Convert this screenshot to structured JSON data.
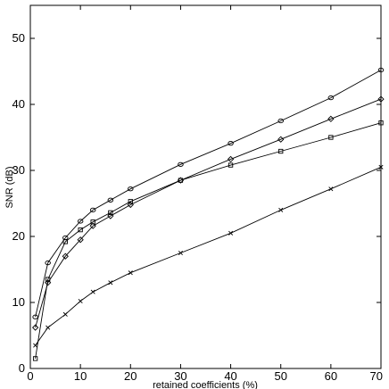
{
  "chart_data": {
    "type": "line",
    "title": "",
    "xlabel": "retained coefficients (%)",
    "ylabel": "SNR (dB)",
    "xlim": [
      0,
      70
    ],
    "ylim": [
      0,
      55
    ],
    "xticks": [
      0,
      10,
      20,
      30,
      40,
      50,
      60,
      70
    ],
    "yticks": [
      0,
      10,
      20,
      30,
      40,
      50
    ],
    "grid": false,
    "legend": "none",
    "series": [
      {
        "marker": "circle",
        "x": [
          1,
          3.5,
          7,
          10,
          12.5,
          16,
          20,
          30,
          40,
          50,
          60,
          70
        ],
        "y": [
          7.8,
          16.0,
          19.8,
          22.3,
          24.0,
          25.5,
          27.2,
          30.9,
          34.1,
          37.5,
          41.0,
          45.2
        ]
      },
      {
        "marker": "diamond",
        "x": [
          1,
          3.5,
          7,
          10,
          12.5,
          16,
          20,
          30,
          40,
          50,
          60,
          70
        ],
        "y": [
          6.2,
          13.0,
          17.0,
          19.5,
          21.6,
          23.1,
          24.8,
          28.5,
          31.7,
          34.7,
          37.8,
          40.8
        ]
      },
      {
        "marker": "square",
        "x": [
          1,
          3.5,
          7,
          10,
          12.5,
          16,
          20,
          30,
          40,
          50,
          60,
          70
        ],
        "y": [
          1.5,
          13.5,
          19.2,
          21.0,
          22.2,
          23.6,
          25.3,
          28.5,
          30.8,
          32.9,
          35.0,
          37.2
        ]
      },
      {
        "marker": "x",
        "x": [
          1,
          3.5,
          7,
          10,
          12.5,
          16,
          20,
          30,
          40,
          50,
          60,
          70
        ],
        "y": [
          3.5,
          6.2,
          8.2,
          10.2,
          11.6,
          13.0,
          14.5,
          17.5,
          20.5,
          24.0,
          27.2,
          30.5
        ]
      }
    ]
  }
}
